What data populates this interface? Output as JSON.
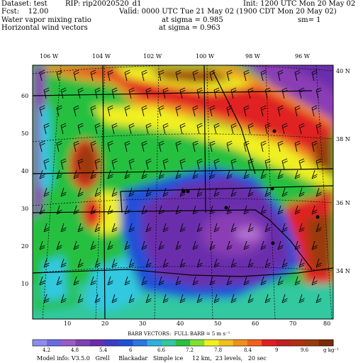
{
  "header": {
    "dataset": "Dataset: test",
    "rip": "RIP: rip20020520_d1",
    "init": "Init: 1200 UTC Mon 20 May 02",
    "fcst": "Fcst:    12.00",
    "valid": "Valid: 0000 UTC Tue 21 May 02 (1900 CDT Mon 20 May 02)",
    "field1": "Water vapor mixing ratio",
    "sigma1": "at sigma = 0.985",
    "sm": "sm= 1",
    "field2": "Horizontal wind vectors",
    "sigma2": "at sigma = 0.963"
  },
  "map": {
    "lon_labels": [
      "106 W",
      "104 W",
      "102 W",
      "100 W",
      "98 W",
      "96 W"
    ],
    "lat_labels": [
      "40 N",
      "38 N",
      "36 N",
      "34 N"
    ],
    "x_ticks": [
      "10",
      "20",
      "30",
      "40",
      "50",
      "60",
      "70",
      "80"
    ],
    "y_ticks": [
      "60",
      "50",
      "40",
      "30",
      "20",
      "10"
    ],
    "colors": {
      "violet": "#8a3cb4",
      "purple": "#6a2eac",
      "blue": "#2050d8",
      "cyan": "#30c8e0",
      "green": "#28c040",
      "yellow": "#f0f020",
      "orange": "#f09020",
      "red": "#e02020",
      "brown": "#9a3a10"
    }
  },
  "barbs_title": "BARB VECTORS:  FULL BARB = 5 m s⁻¹",
  "colorbar": {
    "labels": [
      "4.2",
      "4.8",
      "5.4",
      "6",
      "6.6",
      "7.2",
      "7.8",
      "8.4",
      "9",
      "9.6"
    ],
    "unit": "g kg⁻¹",
    "colors": [
      "#8c8cf0",
      "#6a6ae0",
      "#9a5cc8",
      "#8040b0",
      "#6a2eac",
      "#3c3cc8",
      "#2050d8",
      "#2a78e0",
      "#30b0e0",
      "#30c8a0",
      "#28c040",
      "#80e030",
      "#f0f020",
      "#f0c020",
      "#f09020",
      "#f06020",
      "#e02020",
      "#c02020",
      "#b03010",
      "#9a3a10",
      "#7a2a0a"
    ]
  },
  "footer": "Model info: V3.5.0   Grell     Blackadar   Simple ice     12 km,  23 levels,   20 sec"
}
